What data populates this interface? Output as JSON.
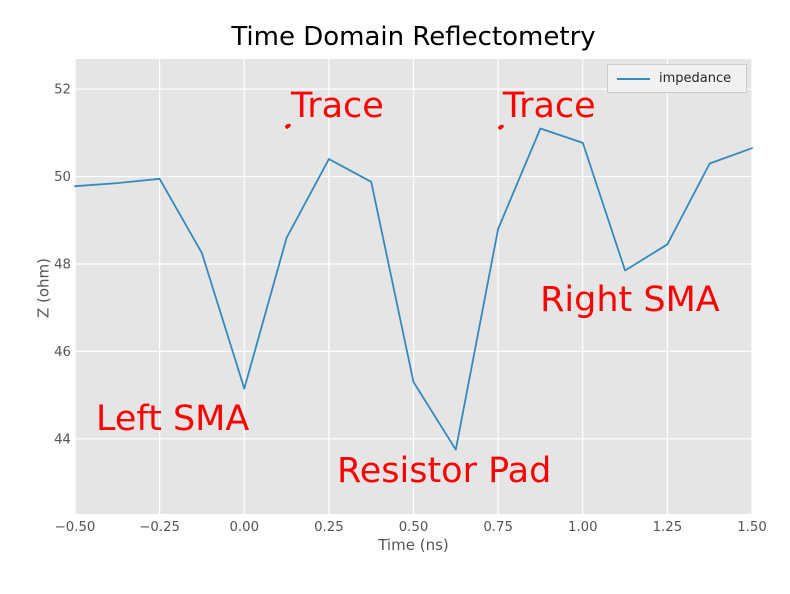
{
  "chart_data": {
    "type": "line",
    "title": "Time Domain Reflectometry",
    "xlabel": "Time (ns)",
    "ylabel": "Z (ohm)",
    "xlim": [
      -0.5,
      1.5
    ],
    "ylim": [
      42.28,
      52.69
    ],
    "grid": true,
    "plot_background": "#e5e5e5",
    "grid_color": "#ffffff",
    "tick_color": "#555555",
    "annotation_color": "#ff0000",
    "legend_position": "upper right",
    "x_ticks": {
      "values": [
        -0.5,
        -0.25,
        0.0,
        0.25,
        0.5,
        0.75,
        1.0,
        1.25,
        1.5
      ],
      "labels": [
        "−0.50",
        "−0.25",
        "0.00",
        "0.25",
        "0.50",
        "0.75",
        "1.00",
        "1.25",
        "1.50"
      ]
    },
    "y_ticks": {
      "values": [
        44,
        46,
        48,
        50,
        52
      ],
      "labels": [
        "44",
        "46",
        "48",
        "50",
        "52"
      ]
    },
    "x": [
      -0.5,
      -0.375,
      -0.25,
      -0.125,
      0.0,
      0.125,
      0.25,
      0.375,
      0.5,
      0.625,
      0.75,
      0.875,
      1.0,
      1.125,
      1.25,
      1.375,
      1.5
    ],
    "series": [
      {
        "name": "impedance",
        "color": "#348abd",
        "values": [
          49.78,
          49.85,
          49.95,
          48.25,
          45.15,
          48.6,
          50.4,
          49.88,
          45.3,
          43.75,
          48.8,
          51.1,
          50.77,
          47.85,
          48.45,
          50.3,
          50.65
        ]
      }
    ],
    "annotations": [
      {
        "text": "Trace",
        "x": 0.138,
        "y": 51.91
      },
      {
        "text": "Trace",
        "x": 0.764,
        "y": 51.91
      },
      {
        "text": "Left SMA",
        "x": -0.438,
        "y": 44.74
      },
      {
        "text": "Right SMA",
        "x": 0.874,
        "y": 47.47
      },
      {
        "text": "Resistor Pad",
        "x": 0.274,
        "y": 43.55
      }
    ],
    "arrow_marks": [
      {
        "x": 0.129,
        "y": 51.15
      },
      {
        "x": 0.758,
        "y": 51.13
      }
    ]
  }
}
